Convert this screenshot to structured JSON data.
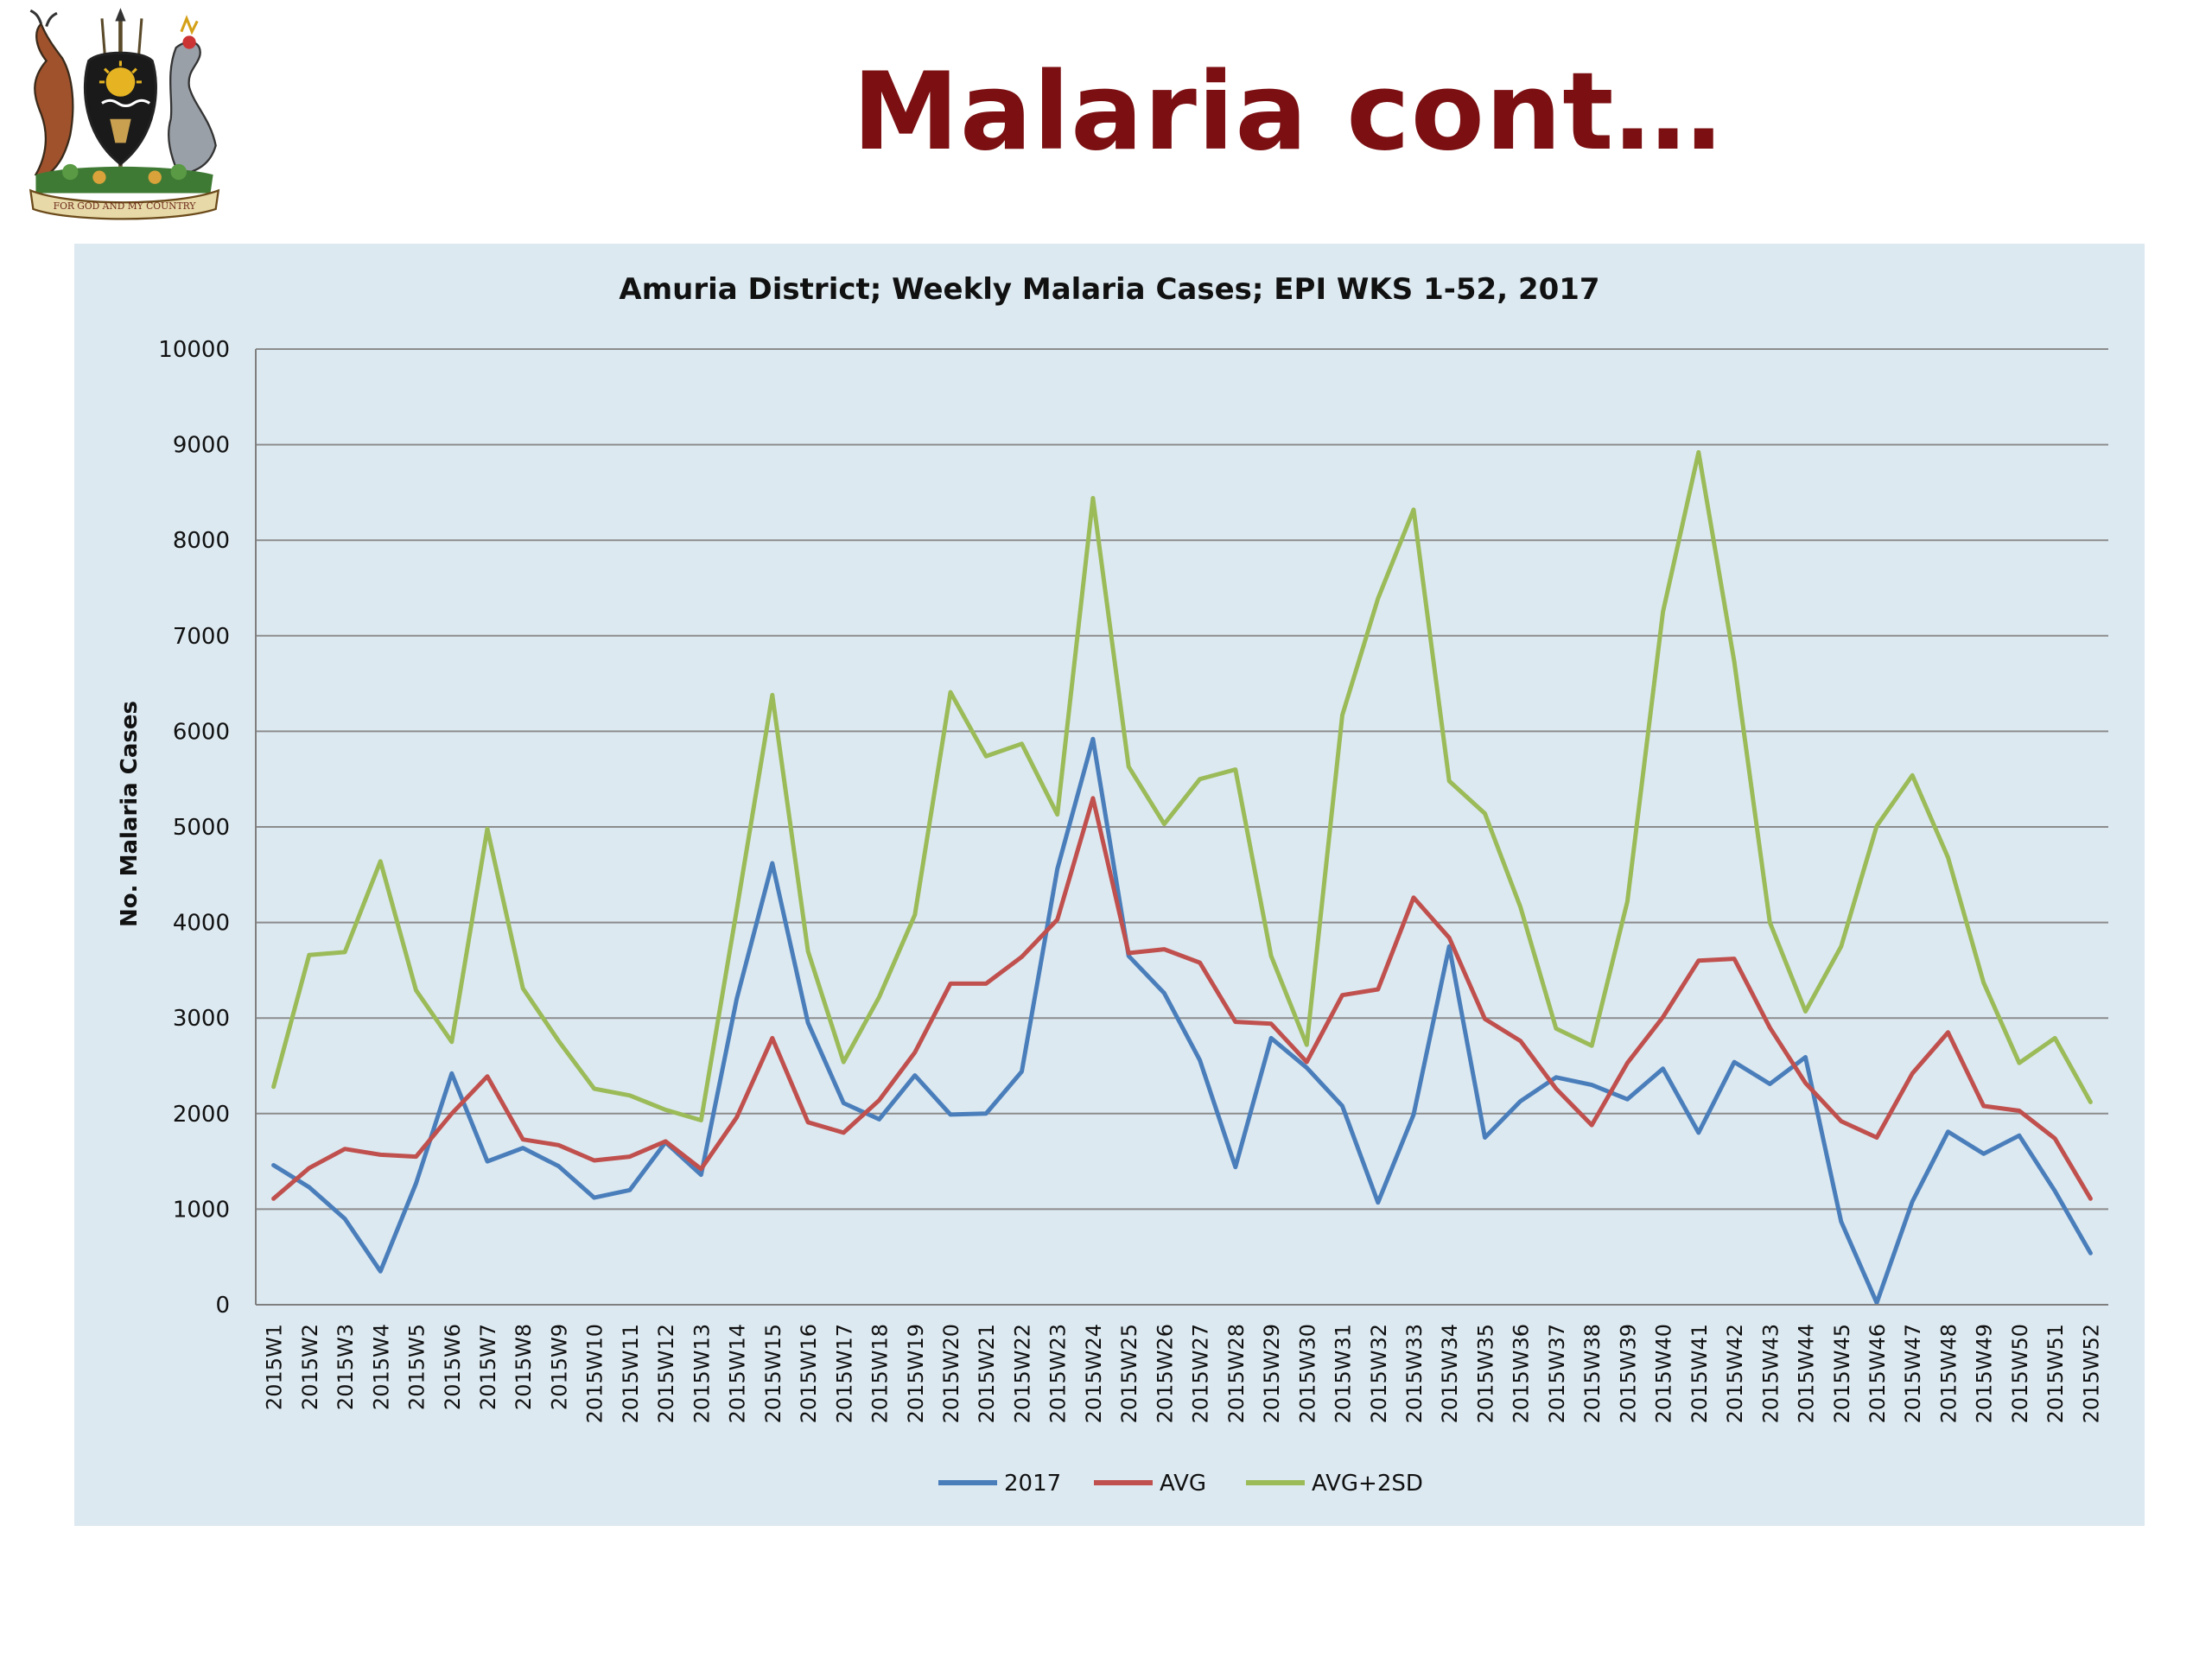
{
  "slide": {
    "title": "Malaria cont…",
    "logo_icon": "uganda-coat-of-arms-icon",
    "logo_motto": "FOR GOD AND MY COUNTRY"
  },
  "colors": {
    "title": "#7b0f12",
    "plot_background": "#dce9f1",
    "gridline": "#8c8c8c",
    "series_2017": "#4a7ebb",
    "series_avg": "#c0504d",
    "series_avg_2sd": "#9bbb59"
  },
  "chart_data": {
    "type": "line",
    "title": "Amuria District; Weekly Malaria Cases; EPI WKS 1-52, 2017",
    "ylabel": "No. Malaria Cases",
    "xlabel": "",
    "ylim": [
      0,
      10000
    ],
    "yticks": [
      0,
      1000,
      2000,
      3000,
      4000,
      5000,
      6000,
      7000,
      8000,
      9000,
      10000
    ],
    "grid": true,
    "legend_position": "bottom",
    "categories": [
      "2015W1",
      "2015W2",
      "2015W3",
      "2015W4",
      "2015W5",
      "2015W6",
      "2015W7",
      "2015W8",
      "2015W9",
      "2015W10",
      "2015W11",
      "2015W12",
      "2015W13",
      "2015W14",
      "2015W15",
      "2015W16",
      "2015W17",
      "2015W18",
      "2015W19",
      "2015W20",
      "2015W21",
      "2015W22",
      "2015W23",
      "2015W24",
      "2015W25",
      "2015W26",
      "2015W27",
      "2015W28",
      "2015W29",
      "2015W30",
      "2015W31",
      "2015W32",
      "2015W33",
      "2015W34",
      "2015W35",
      "2015W36",
      "2015W37",
      "2015W38",
      "2015W39",
      "2015W40",
      "2015W41",
      "2015W42",
      "2015W43",
      "2015W44",
      "2015W45",
      "2015W46",
      "2015W47",
      "2015W48",
      "2015W49",
      "2015W50",
      "2015W51",
      "2015W52"
    ],
    "series": [
      {
        "name": "2017",
        "color": "#4a7ebb",
        "values": [
          1460,
          1230,
          900,
          350,
          1270,
          2420,
          1500,
          1640,
          1450,
          1120,
          1200,
          1700,
          1360,
          3200,
          4620,
          2950,
          2110,
          1940,
          2400,
          1990,
          2000,
          2440,
          4560,
          5920,
          3650,
          3260,
          2560,
          1440,
          2790,
          2480,
          2080,
          1070,
          1990,
          3750,
          1750,
          2130,
          2380,
          2300,
          2150,
          2470,
          1800,
          2540,
          2310,
          2590,
          870,
          20,
          1080,
          1810,
          1580,
          1770,
          1190,
          540
        ]
      },
      {
        "name": "AVG",
        "color": "#c0504d",
        "values": [
          1110,
          1430,
          1630,
          1570,
          1550,
          2000,
          2390,
          1730,
          1670,
          1510,
          1550,
          1710,
          1420,
          1960,
          2790,
          1910,
          1800,
          2140,
          2640,
          3360,
          3360,
          3640,
          4030,
          5300,
          3680,
          3720,
          3580,
          2960,
          2940,
          2540,
          3240,
          3300,
          4260,
          3840,
          2990,
          2760,
          2260,
          1880,
          2530,
          3010,
          3600,
          3620,
          2900,
          2320,
          1920,
          1750,
          2420,
          2850,
          2080,
          2030,
          1740,
          1110
        ]
      },
      {
        "name": "AVG+2SD",
        "color": "#9bbb59",
        "values": [
          2280,
          3660,
          3690,
          4640,
          3290,
          2750,
          4980,
          3310,
          2760,
          2260,
          2190,
          2040,
          1930,
          4130,
          6380,
          3700,
          2540,
          3220,
          4080,
          6410,
          5740,
          5870,
          5130,
          8440,
          5630,
          5030,
          5500,
          5600,
          3650,
          2720,
          6170,
          7390,
          8320,
          5480,
          5140,
          4160,
          2890,
          2710,
          4220,
          7250,
          8920,
          6730,
          4000,
          3070,
          3750,
          5010,
          5540,
          4680,
          3370,
          2530,
          2790,
          2120
        ]
      }
    ]
  }
}
